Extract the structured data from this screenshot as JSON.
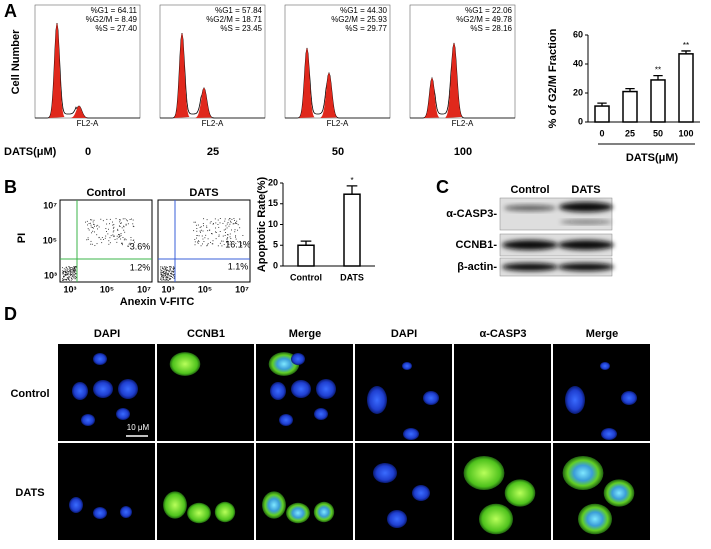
{
  "panel_a": {
    "letter": "A",
    "y_label": "Cell Number",
    "x_axis_label": "FL2-A",
    "dose_label": "DATS(μM)",
    "histograms": [
      {
        "dose": "0",
        "stats": [
          "%G1 = 64.11",
          "%G2/M = 8.49",
          "%S = 27.40"
        ]
      },
      {
        "dose": "25",
        "stats": [
          "%G1 = 57.84",
          "%G2/M = 18.71",
          "%S = 23.45"
        ]
      },
      {
        "dose": "50",
        "stats": [
          "%G1 = 44.30",
          "%G2/M = 25.93",
          "%S = 29.77"
        ]
      },
      {
        "dose": "100",
        "stats": [
          "%G1 = 22.06",
          "%G2/M = 49.78",
          "%S = 28.16"
        ]
      }
    ]
  },
  "panel_b": {
    "letter": "B",
    "y_label": "PI",
    "x_label": "Anexin V-FITC",
    "ticks": [
      "10³",
      "10⁵",
      "10⁷"
    ],
    "plots": [
      {
        "title": "Control",
        "upper": "3.6%",
        "lower": "1.2%"
      },
      {
        "title": "DATS",
        "upper": "16.1%",
        "lower": "1.1%"
      }
    ]
  },
  "panel_c": {
    "letter": "C",
    "columns": [
      "Control",
      "DATS"
    ],
    "rows": [
      "α-CASP3-",
      "CCNB1-",
      "β-actin-"
    ]
  },
  "panel_d": {
    "letter": "D",
    "columns": [
      "DAPI",
      "CCNB1",
      "Merge",
      "DAPI",
      "α-CASP3",
      "Merge"
    ],
    "rows": [
      "Control",
      "DATS"
    ],
    "scale_bar": "10 μM"
  },
  "chart_data": [
    {
      "type": "bar",
      "y_label": "% of G2/M Fraction",
      "x_label": "DATS(μM)",
      "categories": [
        "0",
        "25",
        "50",
        "100"
      ],
      "values": [
        11,
        21,
        29,
        47
      ],
      "errors": [
        2,
        2,
        3,
        2
      ],
      "significance": [
        null,
        null,
        "**",
        "**"
      ],
      "ylim": [
        0,
        60
      ],
      "yticks": [
        0,
        20,
        40,
        60
      ],
      "color": "#ffffff"
    },
    {
      "type": "bar",
      "y_label": "Apoptotic Rate(%)",
      "categories": [
        "Control",
        "DATS"
      ],
      "values": [
        5,
        17.3
      ],
      "errors": [
        1,
        2
      ],
      "significance": [
        null,
        "*"
      ],
      "ylim": [
        0,
        20
      ],
      "yticks": [
        0,
        5,
        10,
        15,
        20
      ],
      "color": "#ffffff"
    }
  ]
}
